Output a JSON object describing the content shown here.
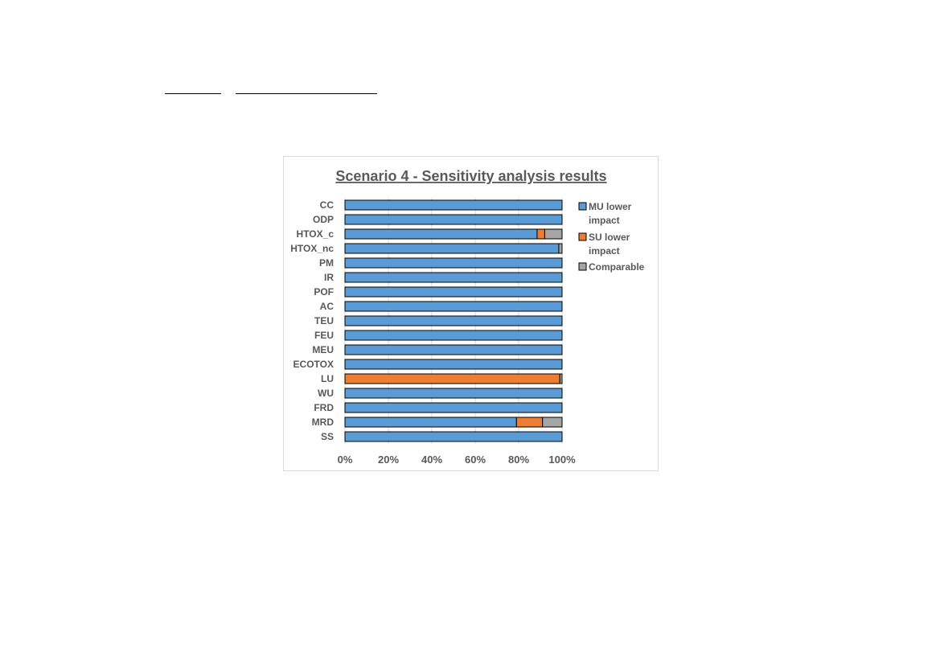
{
  "chart_data": {
    "type": "bar",
    "orientation": "horizontal",
    "stacked": true,
    "title": "Scenario 4 - Sensitivity analysis results",
    "categories": [
      "CC",
      "ODP",
      "HTOX_c",
      "HTOX_nc",
      "PM",
      "IR",
      "POF",
      "AC",
      "TEU",
      "FEU",
      "MEU",
      "ECOTOX",
      "LU",
      "WU",
      "FRD",
      "MRD",
      "SS"
    ],
    "series": [
      {
        "name": "MU lower impact",
        "color": "#5b9bd5",
        "values": [
          100,
          100,
          88.5,
          98.5,
          100,
          100,
          100,
          100,
          100,
          100,
          100,
          100,
          0,
          100,
          100,
          79,
          100
        ]
      },
      {
        "name": "SU lower impact",
        "color": "#ed7d31",
        "values": [
          0,
          0,
          3.5,
          0,
          0,
          0,
          0,
          0,
          0,
          0,
          0,
          0,
          99,
          0,
          0,
          12,
          0
        ]
      },
      {
        "name": "Comparable",
        "color": "#a5a5a5",
        "values": [
          0,
          0,
          8,
          1.5,
          0,
          0,
          0,
          0,
          0,
          0,
          0,
          0,
          1,
          0,
          0,
          9,
          0
        ]
      }
    ],
    "x_ticks": [
      "0%",
      "20%",
      "40%",
      "60%",
      "80%",
      "100%"
    ],
    "xlim": [
      0,
      100
    ],
    "grid": true,
    "legend_position": "right"
  }
}
